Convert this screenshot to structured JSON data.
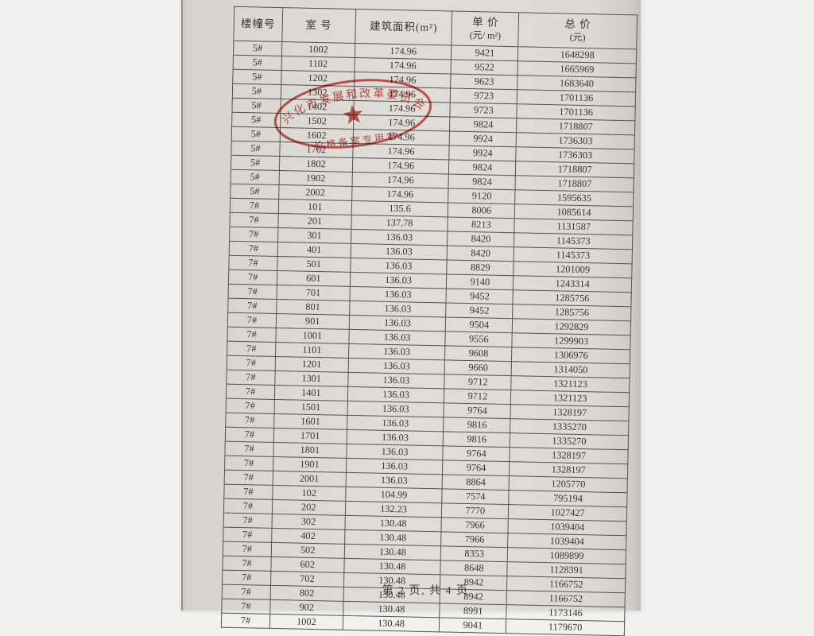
{
  "page": {
    "footer": "第 2 页, 共 4 页"
  },
  "table": {
    "headers": [
      {
        "line1": "楼幢号",
        "line2": ""
      },
      {
        "line1": "室 号",
        "line2": ""
      },
      {
        "line1": "建筑面积(m²)",
        "line2": ""
      },
      {
        "line1": "单  价",
        "line2": "(元/ m²)"
      },
      {
        "line1": "总  价",
        "line2": "(元)"
      }
    ],
    "columns": [
      "楼幢号",
      "室号",
      "建筑面积(m²)",
      "单价(元/m²)",
      "总价(元)"
    ],
    "rows": [
      [
        "5#",
        "1002",
        "174.96",
        "9421",
        "1648298"
      ],
      [
        "5#",
        "1102",
        "174.96",
        "9522",
        "1665969"
      ],
      [
        "5#",
        "1202",
        "174.96",
        "9623",
        "1683640"
      ],
      [
        "5#",
        "1302",
        "174.96",
        "9723",
        "1701136"
      ],
      [
        "5#",
        "1402",
        "174.96",
        "9723",
        "1701136"
      ],
      [
        "5#",
        "1502",
        "174.96",
        "9824",
        "1718807"
      ],
      [
        "5#",
        "1602",
        "174.96",
        "9924",
        "1736303"
      ],
      [
        "5#",
        "1702",
        "174.96",
        "9924",
        "1736303"
      ],
      [
        "5#",
        "1802",
        "174.96",
        "9824",
        "1718807"
      ],
      [
        "5#",
        "1902",
        "174.96",
        "9824",
        "1718807"
      ],
      [
        "5#",
        "2002",
        "174.96",
        "9120",
        "1595635"
      ],
      [
        "7#",
        "101",
        "135.6",
        "8006",
        "1085614"
      ],
      [
        "7#",
        "201",
        "137.78",
        "8213",
        "1131587"
      ],
      [
        "7#",
        "301",
        "136.03",
        "8420",
        "1145373"
      ],
      [
        "7#",
        "401",
        "136.03",
        "8420",
        "1145373"
      ],
      [
        "7#",
        "501",
        "136.03",
        "8829",
        "1201009"
      ],
      [
        "7#",
        "601",
        "136.03",
        "9140",
        "1243314"
      ],
      [
        "7#",
        "701",
        "136.03",
        "9452",
        "1285756"
      ],
      [
        "7#",
        "801",
        "136.03",
        "9452",
        "1285756"
      ],
      [
        "7#",
        "901",
        "136.03",
        "9504",
        "1292829"
      ],
      [
        "7#",
        "1001",
        "136.03",
        "9556",
        "1299903"
      ],
      [
        "7#",
        "1101",
        "136.03",
        "9608",
        "1306976"
      ],
      [
        "7#",
        "1201",
        "136.03",
        "9660",
        "1314050"
      ],
      [
        "7#",
        "1301",
        "136.03",
        "9712",
        "1321123"
      ],
      [
        "7#",
        "1401",
        "136.03",
        "9712",
        "1321123"
      ],
      [
        "7#",
        "1501",
        "136.03",
        "9764",
        "1328197"
      ],
      [
        "7#",
        "1601",
        "136.03",
        "9816",
        "1335270"
      ],
      [
        "7#",
        "1701",
        "136.03",
        "9816",
        "1335270"
      ],
      [
        "7#",
        "1801",
        "136.03",
        "9764",
        "1328197"
      ],
      [
        "7#",
        "1901",
        "136.03",
        "9764",
        "1328197"
      ],
      [
        "7#",
        "2001",
        "136.03",
        "8864",
        "1205770"
      ],
      [
        "7#",
        "102",
        "104.99",
        "7574",
        "795194"
      ],
      [
        "7#",
        "202",
        "132.23",
        "7770",
        "1027427"
      ],
      [
        "7#",
        "302",
        "130.48",
        "7966",
        "1039404"
      ],
      [
        "7#",
        "402",
        "130.48",
        "7966",
        "1039404"
      ],
      [
        "7#",
        "502",
        "130.48",
        "8353",
        "1089899"
      ],
      [
        "7#",
        "602",
        "130.48",
        "8648",
        "1128391"
      ],
      [
        "7#",
        "702",
        "130.48",
        "8942",
        "1166752"
      ],
      [
        "7#",
        "802",
        "130.48",
        "8942",
        "1166752"
      ],
      [
        "7#",
        "902",
        "130.48",
        "8991",
        "1173146"
      ],
      [
        "7#",
        "1002",
        "130.48",
        "9041",
        "1179670"
      ]
    ]
  },
  "stamp": {
    "arc_text": "兴化市发展和改革委员会",
    "bottom_text": "价格备案专用章",
    "color": "#c5392c"
  },
  "colors": {
    "backdrop": "#f1f1f0",
    "paper": "#dcd9d5",
    "grid": "#56534e",
    "text": "#36342f",
    "stamp_red": "#c5392c"
  }
}
